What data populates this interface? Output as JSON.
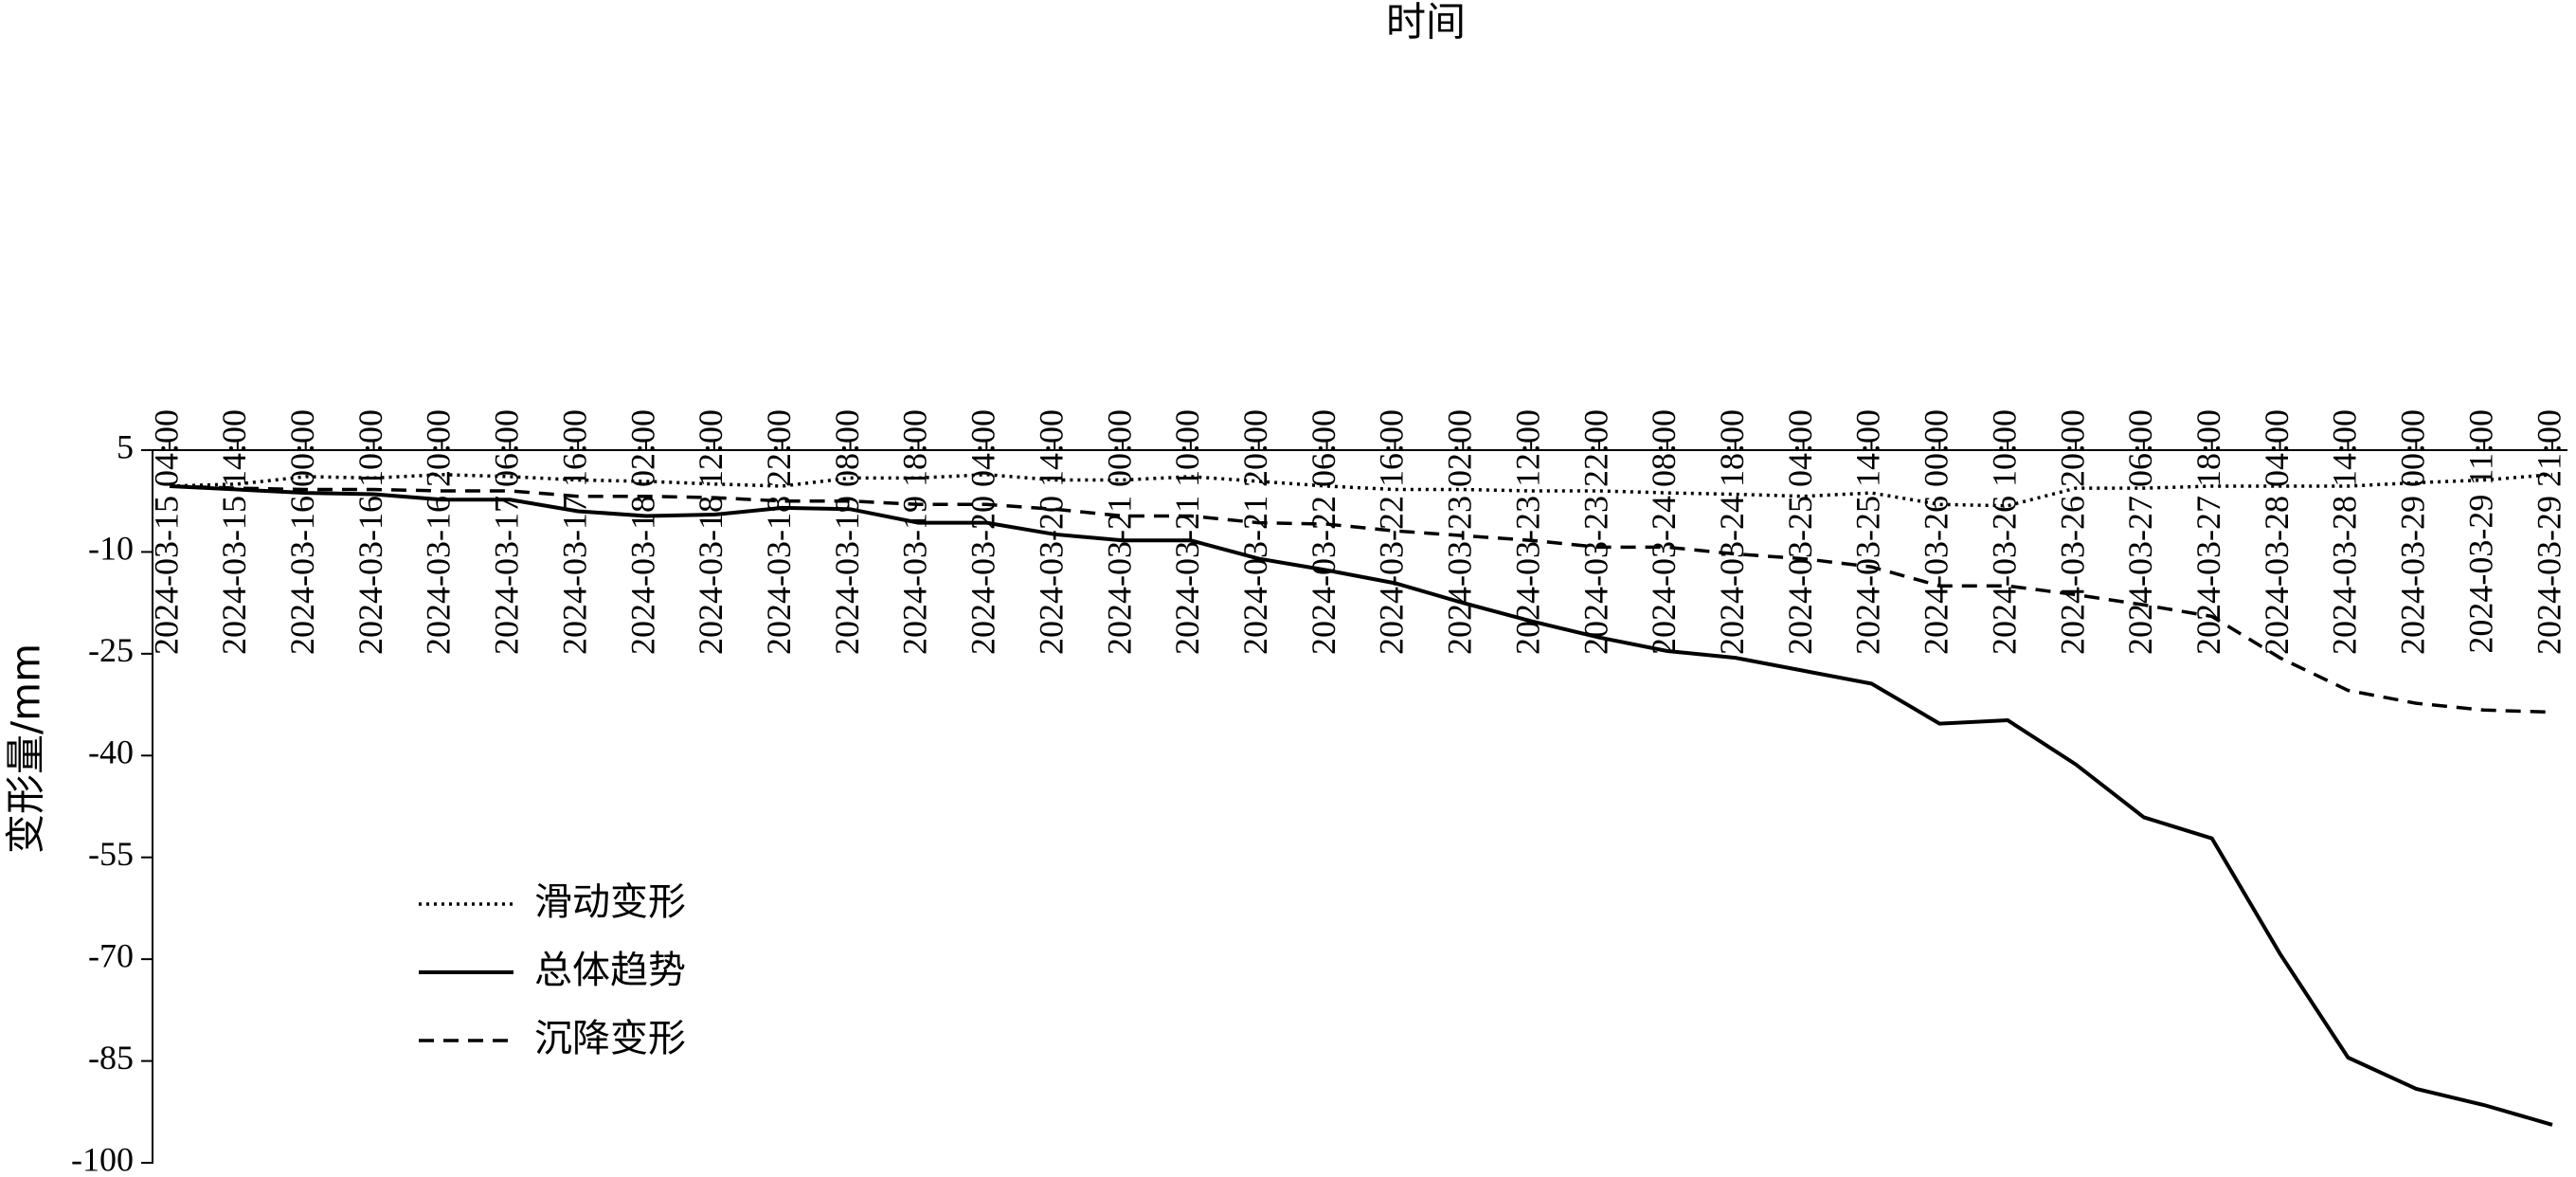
{
  "chart_data": {
    "type": "line",
    "x_label": "时间",
    "y_label": "变形量/mm",
    "categories": [
      "2024-03-15 04:00",
      "2024-03-15 14:00",
      "2024-03-16 00:00",
      "2024-03-16 10:00",
      "2024-03-16 20:00",
      "2024-03-17 06:00",
      "2024-03-17 16:00",
      "2024-03-18 02:00",
      "2024-03-18 12:00",
      "2024-03-18 22:00",
      "2024-03-19 08:00",
      "2024-03-19 18:00",
      "2024-03-20 04:00",
      "2024-03-20 14:00",
      "2024-03-21 00:00",
      "2024-03-21 10:00",
      "2024-03-21 20:00",
      "2024-03-22 06:00",
      "2024-03-22 16:00",
      "2024-03-23 02:00",
      "2024-03-23 12:00",
      "2024-03-23 22:00",
      "2024-03-24 08:00",
      "2024-03-24 18:00",
      "2024-03-25 04:00",
      "2024-03-25 14:00",
      "2024-03-26 00:00",
      "2024-03-26 10:00",
      "2024-03-26 20:00",
      "2024-03-27 06:00",
      "2024-03-27 18:00",
      "2024-03-28 04:00",
      "2024-03-28 14:00",
      "2024-03-29 00:00",
      "2024-03-29 11:00",
      "2024-03-29 21:00"
    ],
    "series": [
      {
        "name": "滑动变形",
        "color": "#000000",
        "linestyle": "dotted",
        "values": [
          -0.3,
          0,
          1.1,
          0.9,
          1.4,
          1.1,
          0.6,
          0.4,
          0,
          -0.3,
          0.9,
          0.9,
          1.4,
          0.6,
          0.6,
          1.1,
          0.4,
          -0.3,
          -0.8,
          -0.8,
          -1,
          -1,
          -1.3,
          -1.5,
          -1.8,
          -1.3,
          -3,
          -3.2,
          -0.6,
          -0.6,
          -0.3,
          -0.3,
          -0.3,
          0.2,
          0.6,
          1.4
        ]
      },
      {
        "name": "总体趋势",
        "color": "#000000",
        "linestyle": "solid",
        "values": [
          -0.3,
          -0.8,
          -1.3,
          -1.5,
          -2.3,
          -2.3,
          -4,
          -4.7,
          -4.5,
          -3.5,
          -3.7,
          -5.7,
          -5.7,
          -7.4,
          -8.3,
          -8.3,
          -11,
          -12.7,
          -14.6,
          -17.5,
          -20.2,
          -22.6,
          -24.6,
          -25.6,
          -27.5,
          -29.4,
          -35.3,
          -34.8,
          -41.3,
          -49.1,
          -52.2,
          -69.2,
          -84.5,
          -89.1,
          -91.5,
          -94.4
        ]
      },
      {
        "name": "沉降变形",
        "color": "#000000",
        "linestyle": "dashed",
        "values": [
          -0.3,
          -0.6,
          -0.8,
          -0.8,
          -1,
          -1,
          -1.8,
          -1.8,
          -2,
          -2.5,
          -2.5,
          -3,
          -3,
          -3.7,
          -4.7,
          -4.7,
          -5.7,
          -5.9,
          -6.9,
          -7.6,
          -8.3,
          -9.3,
          -9.3,
          -10.3,
          -11,
          -12.2,
          -15,
          -15,
          -16.3,
          -17.8,
          -19.5,
          -25.6,
          -30.4,
          -32.3,
          -33.3,
          -33.6
        ]
      }
    ],
    "ylim": [
      -100,
      5
    ],
    "yticks": [
      5,
      -10,
      -25,
      -40,
      -55,
      -70,
      -85,
      -100
    ],
    "legend": "lower left"
  }
}
